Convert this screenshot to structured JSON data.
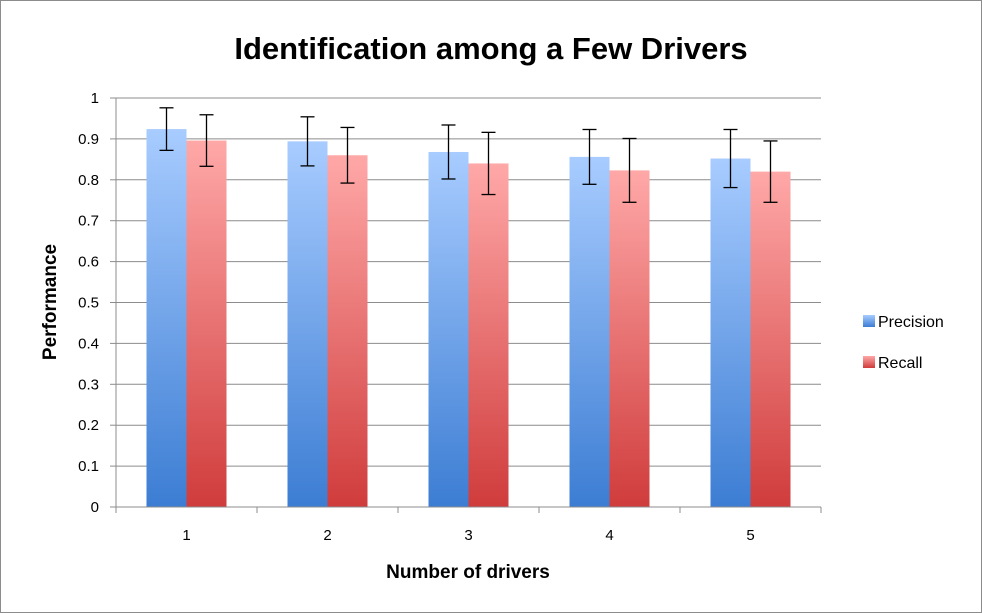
{
  "chart_data": {
    "type": "bar",
    "title": "Identification among a Few Drivers",
    "xlabel": "Number of drivers",
    "ylabel": "Performance",
    "categories": [
      "1",
      "2",
      "3",
      "4",
      "5"
    ],
    "ylim": [
      0,
      1
    ],
    "yticks": [
      "0",
      "0.1",
      "0.2",
      "0.3",
      "0.4",
      "0.5",
      "0.6",
      "0.7",
      "0.8",
      "0.9",
      "1"
    ],
    "grid": true,
    "legend_position": "right",
    "series": [
      {
        "name": "Precision",
        "values": [
          0.924,
          0.894,
          0.868,
          0.856,
          0.852
        ],
        "error": [
          0.052,
          0.06,
          0.066,
          0.067,
          0.071
        ],
        "color_top": "#a8ccff",
        "color_bottom": "#3c7dd3"
      },
      {
        "name": "Recall",
        "values": [
          0.896,
          0.86,
          0.84,
          0.823,
          0.82
        ],
        "error": [
          0.063,
          0.068,
          0.076,
          0.078,
          0.075
        ],
        "color_top": "#ffa8a8",
        "color_bottom": "#d03c3c"
      }
    ]
  }
}
